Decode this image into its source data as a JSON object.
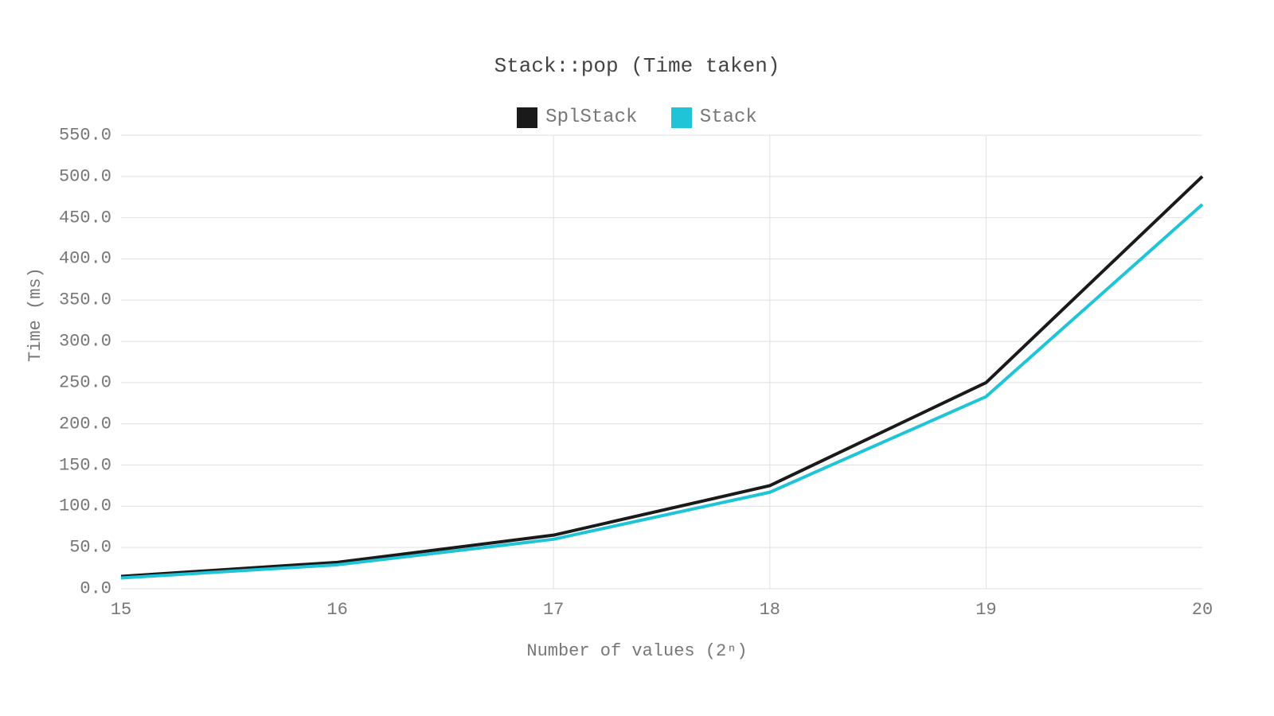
{
  "chart": {
    "type": "line",
    "title": "Stack::pop (Time taken)",
    "title_color": "#444444",
    "title_fontsize": 26,
    "xlabel": "Number of values (2ⁿ)",
    "ylabel": "Time (ms)",
    "label_color": "#777777",
    "label_fontsize": 22,
    "tick_color": "#777777",
    "tick_fontsize": 22,
    "background_color": "#ffffff",
    "grid_color": "#e0e0e0",
    "grid_width": 1,
    "line_width": 4,
    "xlim": [
      15,
      20
    ],
    "ylim": [
      0,
      550
    ],
    "xticks": [
      15,
      16,
      17,
      18,
      19,
      20
    ],
    "yticks": [
      0,
      50,
      100,
      150,
      200,
      250,
      300,
      350,
      400,
      450,
      500,
      550
    ],
    "xgrid_at": [
      17,
      18,
      19
    ],
    "ytick_labels": [
      "0.0",
      "50.0",
      "100.0",
      "150.0",
      "200.0",
      "250.0",
      "300.0",
      "350.0",
      "400.0",
      "450.0",
      "500.0",
      "550.0"
    ],
    "series": [
      {
        "name": "SplStack",
        "color": "#1a1a1a",
        "x": [
          15,
          16,
          17,
          18,
          19,
          20
        ],
        "y": [
          15,
          32,
          65,
          125,
          250,
          500
        ]
      },
      {
        "name": "Stack",
        "color": "#1fc4d6",
        "x": [
          15,
          16,
          17,
          18,
          19,
          20
        ],
        "y": [
          13,
          29,
          60,
          117,
          233,
          466
        ]
      }
    ]
  }
}
